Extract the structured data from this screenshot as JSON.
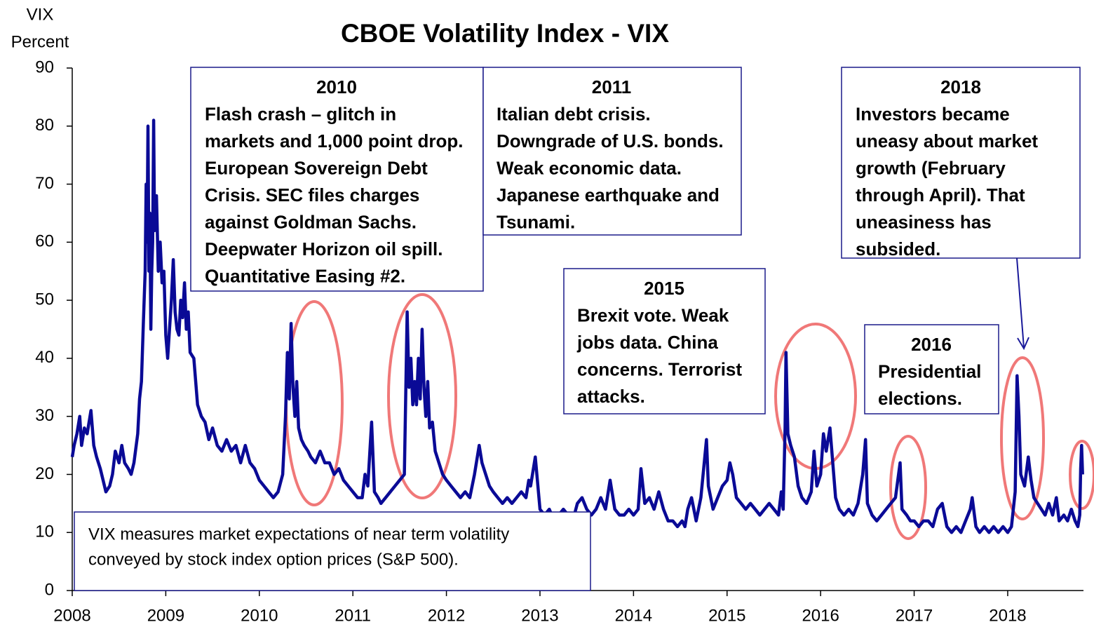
{
  "chart_data": {
    "type": "line",
    "title": "CBOE Volatility Index - VIX",
    "y_label": [
      "VIX",
      "Percent"
    ],
    "color": "#0a0a96",
    "xlim": [
      2008,
      2018.81
    ],
    "xticks": [
      2008,
      2009,
      2010,
      2011,
      2012,
      2013,
      2014,
      2015,
      2016,
      2017,
      2018
    ],
    "ylim": [
      0,
      90
    ],
    "yticks": [
      0,
      10,
      20,
      30,
      40,
      50,
      60,
      70,
      80,
      90
    ],
    "grid": false,
    "x": [
      2008,
      2008.02,
      2008.05,
      2008.08,
      2008.1,
      2008.13,
      2008.16,
      2008.2,
      2008.23,
      2008.26,
      2008.3,
      2008.33,
      2008.36,
      2008.4,
      2008.43,
      2008.46,
      2008.5,
      2008.53,
      2008.56,
      2008.6,
      2008.63,
      2008.66,
      2008.7,
      2008.72,
      2008.74,
      2008.76,
      2008.78,
      2008.79,
      2008.8,
      2008.81,
      2008.82,
      2008.83,
      2008.84,
      2008.85,
      2008.86,
      2008.87,
      2008.88,
      2008.9,
      2008.92,
      2008.94,
      2008.96,
      2008.98,
      2009,
      2009.02,
      2009.04,
      2009.06,
      2009.08,
      2009.1,
      2009.12,
      2009.14,
      2009.16,
      2009.18,
      2009.2,
      2009.22,
      2009.24,
      2009.26,
      2009.3,
      2009.34,
      2009.38,
      2009.42,
      2009.46,
      2009.5,
      2009.55,
      2009.6,
      2009.65,
      2009.7,
      2009.75,
      2009.8,
      2009.85,
      2009.9,
      2009.95,
      2010,
      2010.05,
      2010.1,
      2010.15,
      2010.2,
      2010.25,
      2010.28,
      2010.3,
      2010.32,
      2010.34,
      2010.36,
      2010.38,
      2010.4,
      2010.42,
      2010.45,
      2010.48,
      2010.52,
      2010.55,
      2010.6,
      2010.65,
      2010.7,
      2010.75,
      2010.8,
      2010.85,
      2010.9,
      2010.95,
      2011,
      2011.05,
      2011.1,
      2011.13,
      2011.16,
      2011.2,
      2011.23,
      2011.27,
      2011.3,
      2011.35,
      2011.4,
      2011.45,
      2011.5,
      2011.55,
      2011.58,
      2011.6,
      2011.62,
      2011.64,
      2011.66,
      2011.68,
      2011.7,
      2011.72,
      2011.74,
      2011.76,
      2011.78,
      2011.8,
      2011.82,
      2011.85,
      2011.88,
      2011.92,
      2011.96,
      2012,
      2012.05,
      2012.1,
      2012.15,
      2012.2,
      2012.25,
      2012.3,
      2012.35,
      2012.38,
      2012.42,
      2012.46,
      2012.5,
      2012.55,
      2012.6,
      2012.65,
      2012.7,
      2012.75,
      2012.8,
      2012.85,
      2012.88,
      2012.9,
      2012.95,
      2013,
      2013.05,
      2013.1,
      2013.15,
      2013.2,
      2013.25,
      2013.3,
      2013.35,
      2013.4,
      2013.45,
      2013.5,
      2013.55,
      2013.6,
      2013.65,
      2013.7,
      2013.75,
      2013.8,
      2013.85,
      2013.9,
      2013.95,
      2014,
      2014.05,
      2014.08,
      2014.12,
      2014.17,
      2014.22,
      2014.27,
      2014.32,
      2014.37,
      2014.42,
      2014.47,
      2014.52,
      2014.55,
      2014.58,
      2014.62,
      2014.67,
      2014.72,
      2014.75,
      2014.78,
      2014.8,
      2014.85,
      2014.9,
      2014.95,
      2015,
      2015.03,
      2015.06,
      2015.1,
      2015.15,
      2015.2,
      2015.25,
      2015.3,
      2015.35,
      2015.4,
      2015.45,
      2015.5,
      2015.55,
      2015.58,
      2015.6,
      2015.62,
      2015.63,
      2015.65,
      2015.68,
      2015.72,
      2015.76,
      2015.8,
      2015.85,
      2015.9,
      2015.93,
      2015.96,
      2016,
      2016.03,
      2016.06,
      2016.1,
      2016.13,
      2016.16,
      2016.2,
      2016.25,
      2016.3,
      2016.35,
      2016.4,
      2016.45,
      2016.48,
      2016.5,
      2016.55,
      2016.6,
      2016.65,
      2016.7,
      2016.75,
      2016.8,
      2016.85,
      2016.87,
      2016.92,
      2016.96,
      2017,
      2017.05,
      2017.1,
      2017.15,
      2017.2,
      2017.25,
      2017.3,
      2017.35,
      2017.4,
      2017.45,
      2017.5,
      2017.55,
      2017.6,
      2017.62,
      2017.66,
      2017.7,
      2017.75,
      2017.8,
      2017.85,
      2017.9,
      2017.95,
      2018,
      2018.04,
      2018.08,
      2018.1,
      2018.12,
      2018.14,
      2018.18,
      2018.22,
      2018.25,
      2018.28,
      2018.32,
      2018.36,
      2018.4,
      2018.44,
      2018.48,
      2018.52,
      2018.55,
      2018.6,
      2018.64,
      2018.68,
      2018.72,
      2018.75,
      2018.77,
      2018.78,
      2018.79,
      2018.8
    ],
    "values": [
      23,
      25,
      27,
      30,
      25,
      28,
      27,
      31,
      25,
      23,
      21,
      19,
      17,
      18,
      20,
      24,
      22,
      25,
      22,
      21,
      20,
      22,
      27,
      33,
      36,
      46,
      55,
      70,
      60,
      80,
      55,
      65,
      45,
      55,
      60,
      81,
      62,
      68,
      55,
      60,
      53,
      55,
      44,
      40,
      45,
      50,
      57,
      48,
      45,
      44,
      50,
      47,
      53,
      45,
      48,
      41,
      40,
      32,
      30,
      29,
      26,
      28,
      25,
      24,
      26,
      24,
      25,
      22,
      25,
      22,
      21,
      19,
      18,
      17,
      16,
      17,
      20,
      30,
      41,
      33,
      46,
      35,
      30,
      36,
      28,
      26,
      25,
      24,
      23,
      22,
      24,
      22,
      22,
      20,
      21,
      19,
      18,
      17,
      16,
      16,
      20,
      18,
      29,
      17,
      16,
      15,
      16,
      17,
      18,
      19,
      20,
      48,
      35,
      40,
      32,
      36,
      32,
      40,
      33,
      45,
      35,
      30,
      36,
      28,
      29,
      24,
      22,
      20,
      19,
      18,
      17,
      16,
      17,
      16,
      20,
      25,
      22,
      20,
      18,
      17,
      16,
      15,
      16,
      15,
      16,
      17,
      16,
      19,
      18,
      23,
      14,
      13,
      14,
      12,
      13,
      14,
      13,
      12,
      15,
      16,
      14,
      13,
      14,
      16,
      14,
      19,
      14,
      13,
      13,
      14,
      13,
      14,
      21,
      15,
      16,
      14,
      17,
      14,
      12,
      12,
      11,
      12,
      11,
      14,
      16,
      12,
      16,
      21,
      26,
      18,
      14,
      16,
      18,
      19,
      22,
      20,
      16,
      15,
      14,
      15,
      14,
      13,
      14,
      15,
      14,
      13,
      17,
      14,
      28,
      41,
      27,
      25,
      23,
      18,
      16,
      15,
      17,
      24,
      18,
      20,
      27,
      24,
      28,
      22,
      16,
      14,
      13,
      14,
      13,
      15,
      20,
      26,
      15,
      13,
      12,
      13,
      14,
      15,
      16,
      22,
      14,
      13,
      12,
      12,
      11,
      12,
      12,
      11,
      14,
      15,
      11,
      10,
      11,
      10,
      12,
      14,
      16,
      11,
      10,
      11,
      10,
      11,
      10,
      11,
      10,
      11,
      17,
      37,
      30,
      20,
      18,
      23,
      19,
      16,
      15,
      14,
      13,
      15,
      13,
      16,
      12,
      13,
      12,
      14,
      12,
      11,
      13,
      21,
      25,
      20
    ],
    "annotations": [
      {
        "lines": [
          "2010",
          "Flash crash – glitch in",
          "markets and 1,000 point drop.",
          "European Sovereign Debt",
          "Crisis. SEC files charges",
          "against Goldman Sachs.",
          "Deepwater Horizon oil spill.",
          "Quantitative Easing #2."
        ]
      },
      {
        "lines": [
          "2011",
          "Italian debt crisis.",
          "Downgrade of U.S. bonds.",
          "Weak economic data.",
          "Japanese earthquake and",
          "Tsunami."
        ]
      },
      {
        "lines": [
          "2018",
          "Investors became",
          "uneasy about market",
          "growth (February",
          "through April). That",
          "uneasiness has",
          "subsided."
        ]
      },
      {
        "lines": [
          "2015",
          "Brexit vote. Weak",
          "jobs data. China",
          "concerns. Terrorist",
          "attacks."
        ]
      },
      {
        "lines": [
          "2016",
          "Presidential",
          "elections."
        ]
      },
      {
        "lines": [
          "VIX measures market expectations of near term volatility",
          "conveyed by stock index option prices (S&P 500)."
        ]
      }
    ]
  }
}
